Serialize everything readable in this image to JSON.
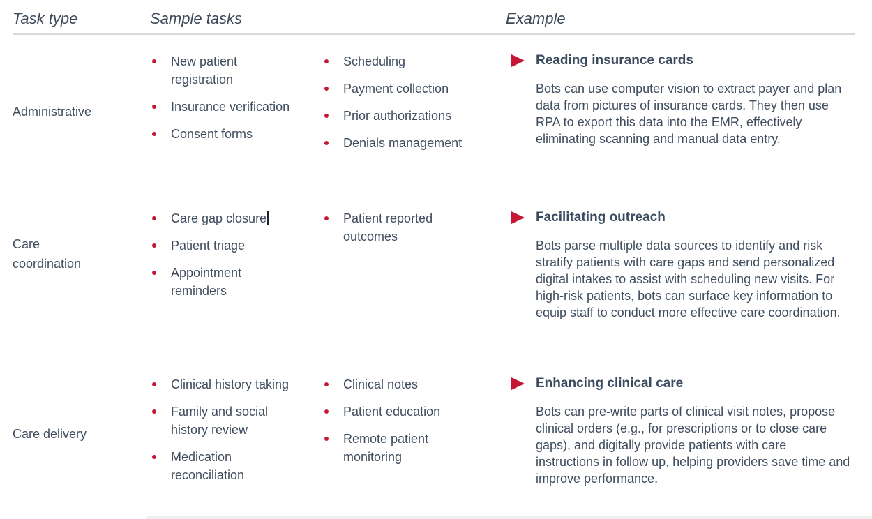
{
  "colors": {
    "accent_red": "#C51633",
    "body_text": "#3F4D5E",
    "heading_text": "#3C4C60",
    "divider_gray": "#D7DADC"
  },
  "header": {
    "task_type": "Task type",
    "sample_tasks": "Sample tasks",
    "example": "Example"
  },
  "rows": [
    {
      "task_type": "Administrative",
      "tasks_a": [
        "New patient registration",
        "Insurance verification",
        "Consent forms"
      ],
      "tasks_b": [
        "Scheduling",
        "Payment collection",
        "Prior authorizations",
        "Denials management"
      ],
      "example_title": "Reading insurance cards",
      "example_body": "Bots can use computer vision to extract payer and plan data from pictures of insurance cards. They then use RPA to export this data into the EMR, effectively eliminating scanning and manual data entry."
    },
    {
      "task_type": "Care coordination",
      "tasks_a": [
        "Care gap closure",
        "Patient triage",
        "Appointment reminders"
      ],
      "tasks_b": [
        "Patient reported outcomes"
      ],
      "example_title": "Facilitating outreach",
      "example_body": "Bots parse multiple data sources to identify and risk stratify patients with care gaps and send personalized digital intakes to assist with scheduling new visits. For high-risk patients, bots can surface key information to equip staff to conduct more effective care coordination."
    },
    {
      "task_type": "Care delivery",
      "tasks_a": [
        "Clinical history taking",
        "Family and social history review",
        "Medication reconciliation"
      ],
      "tasks_b": [
        "Clinical notes",
        "Patient education",
        "Remote patient monitoring"
      ],
      "example_title": "Enhancing clinical care",
      "example_body": "Bots can pre-write parts of clinical visit notes, propose clinical orders (e.g., for prescriptions or to close care gaps), and digitally provide patients with care instructions in follow up, helping providers save time and improve performance."
    }
  ]
}
